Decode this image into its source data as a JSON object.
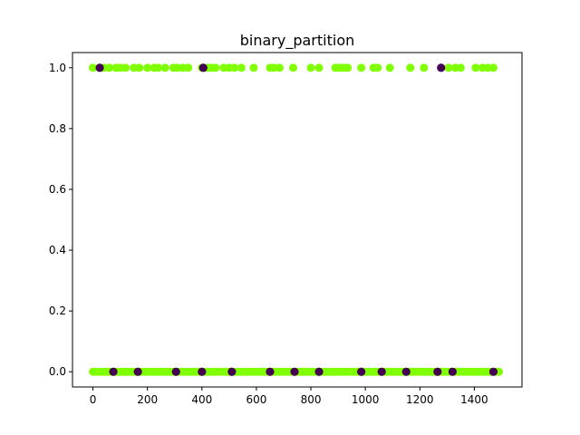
{
  "chart_data": {
    "type": "scatter",
    "title": "binary_partition",
    "xlabel": "",
    "ylabel": "",
    "xlim": [
      -75,
      1575
    ],
    "ylim": [
      -0.05,
      1.05
    ],
    "xticks": [
      0,
      200,
      400,
      600,
      800,
      1000,
      1200,
      1400
    ],
    "xtick_labels": [
      "0",
      "200",
      "400",
      "600",
      "800",
      "1000",
      "1200",
      "1400"
    ],
    "yticks": [
      0.0,
      0.2,
      0.4,
      0.6,
      0.8,
      1.0
    ],
    "ytick_labels": [
      "0.0",
      "0.2",
      "0.4",
      "0.6",
      "0.8",
      "1.0"
    ],
    "grid": false,
    "legend": "none",
    "colors": {
      "majority": "#7fff00",
      "minority": "#440154"
    },
    "series": [
      {
        "color": "#7fff00",
        "x": [
          0,
          25,
          40,
          60,
          85,
          100,
          120,
          150,
          170,
          200,
          225,
          240,
          265,
          295,
          310,
          330,
          350,
          400,
          420,
          435,
          450,
          480,
          500,
          520,
          545,
          590,
          650,
          665,
          685,
          735,
          800,
          830,
          890,
          905,
          920,
          935,
          985,
          1030,
          1045,
          1090,
          1165,
          1215,
          1305,
          1330,
          1350,
          1405,
          1430,
          1450,
          1470
        ],
        "y": [
          1,
          1,
          1,
          1,
          1,
          1,
          1,
          1,
          1,
          1,
          1,
          1,
          1,
          1,
          1,
          1,
          1,
          1,
          1,
          1,
          1,
          1,
          1,
          1,
          1,
          1,
          1,
          1,
          1,
          1,
          1,
          1,
          1,
          1,
          1,
          1,
          1,
          1,
          1,
          1,
          1,
          1,
          1,
          1,
          1,
          1,
          1,
          1,
          1
        ]
      },
      {
        "color": "#440154",
        "x": [
          25,
          405,
          1278
        ],
        "y": [
          1,
          1,
          1
        ]
      },
      {
        "color": "#7fff00",
        "x_range": [
          0,
          1495
        ],
        "x_step": 10,
        "y_value": 0,
        "note_points": "dense row of points along y = 0"
      },
      {
        "color": "#440154",
        "x": [
          75,
          165,
          305,
          400,
          510,
          650,
          740,
          830,
          985,
          1060,
          1150,
          1265,
          1320,
          1470
        ],
        "y": [
          0,
          0,
          0,
          0,
          0,
          0,
          0,
          0,
          0,
          0,
          0,
          0,
          0,
          0
        ]
      }
    ]
  }
}
